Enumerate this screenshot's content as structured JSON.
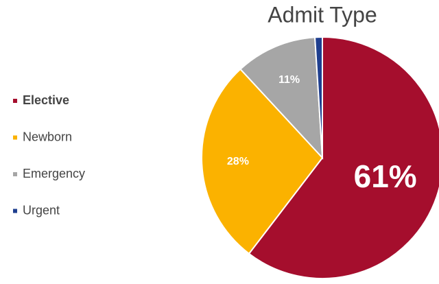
{
  "chart_data": {
    "type": "pie",
    "title": "Admit Type",
    "categories": [
      "Elective",
      "Newborn",
      "Emergency",
      "Urgent"
    ],
    "values": [
      61,
      28,
      11,
      1
    ],
    "value_labels": [
      "61%",
      "28%",
      "11%",
      null
    ],
    "colors": [
      "#a50e2d",
      "#fbb200",
      "#a6a6a6",
      "#1f3f8f"
    ],
    "legend": "left"
  }
}
